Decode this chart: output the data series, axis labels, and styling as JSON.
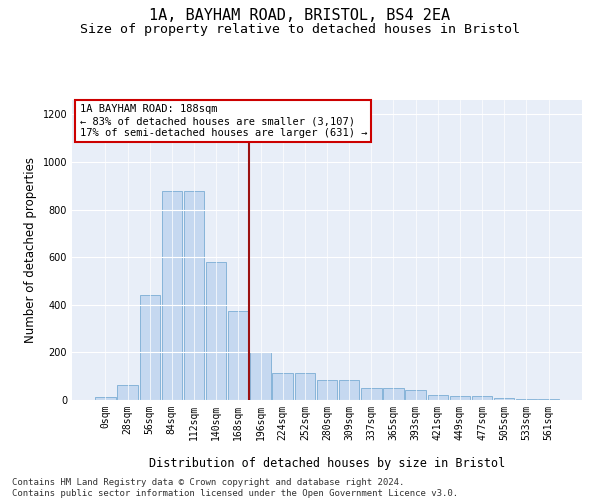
{
  "title": "1A, BAYHAM ROAD, BRISTOL, BS4 2EA",
  "subtitle": "Size of property relative to detached houses in Bristol",
  "xlabel": "Distribution of detached houses by size in Bristol",
  "ylabel": "Number of detached properties",
  "bar_labels": [
    "0sqm",
    "28sqm",
    "56sqm",
    "84sqm",
    "112sqm",
    "140sqm",
    "168sqm",
    "196sqm",
    "224sqm",
    "252sqm",
    "280sqm",
    "309sqm",
    "337sqm",
    "365sqm",
    "393sqm",
    "421sqm",
    "449sqm",
    "477sqm",
    "505sqm",
    "533sqm",
    "561sqm"
  ],
  "bar_values": [
    12,
    65,
    440,
    878,
    876,
    580,
    375,
    200,
    115,
    115,
    85,
    85,
    50,
    50,
    40,
    22,
    15,
    15,
    10,
    4,
    4
  ],
  "bar_color": "#c5d8f0",
  "bar_edge_color": "#7aadd4",
  "vline_color": "#9b1111",
  "annotation_text": "1A BAYHAM ROAD: 188sqm\n← 83% of detached houses are smaller (3,107)\n17% of semi-detached houses are larger (631) →",
  "annotation_box_color": "#ffffff",
  "annotation_box_edge": "#cc0000",
  "ylim": [
    0,
    1260
  ],
  "yticks": [
    0,
    200,
    400,
    600,
    800,
    1000,
    1200
  ],
  "footer": "Contains HM Land Registry data © Crown copyright and database right 2024.\nContains public sector information licensed under the Open Government Licence v3.0.",
  "bg_color": "#e8eef8",
  "title_fontsize": 11,
  "subtitle_fontsize": 9.5,
  "axis_label_fontsize": 8.5,
  "tick_fontsize": 7,
  "footer_fontsize": 6.5,
  "annotation_fontsize": 7.5
}
